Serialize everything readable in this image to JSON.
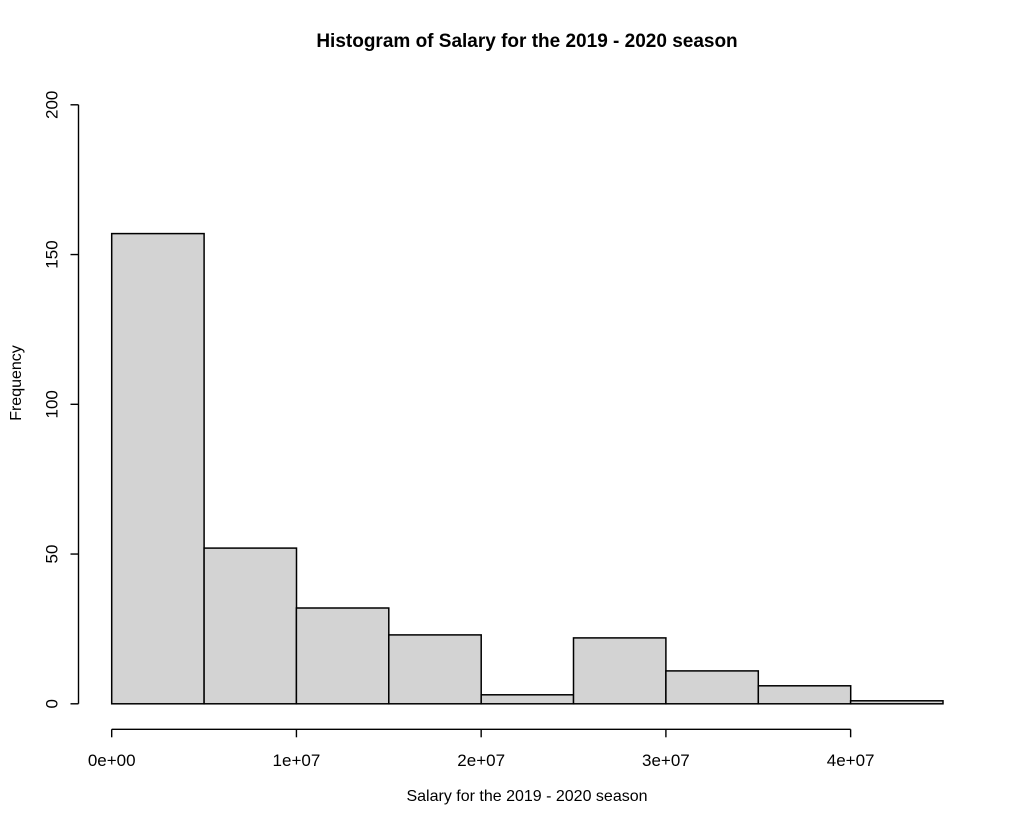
{
  "chart_data": {
    "type": "bar",
    "subtype": "histogram",
    "title": "Histogram of Salary for the 2019 - 2020 season",
    "xlabel": "Salary for the 2019 - 2020 season",
    "ylabel": "Frequency",
    "bin_start": 0,
    "bin_width": 5000000,
    "counts": [
      157,
      52,
      32,
      23,
      3,
      22,
      11,
      6,
      1
    ],
    "bin_edges": [
      0,
      5000000,
      10000000,
      15000000,
      20000000,
      25000000,
      30000000,
      35000000,
      40000000,
      45000000
    ],
    "x_ticks": [
      {
        "value": 0,
        "label": "0e+00"
      },
      {
        "value": 10000000,
        "label": "1e+07"
      },
      {
        "value": 20000000,
        "label": "2e+07"
      },
      {
        "value": 30000000,
        "label": "3e+07"
      },
      {
        "value": 40000000,
        "label": "4e+07"
      }
    ],
    "y_ticks": [
      {
        "value": 0,
        "label": "0"
      },
      {
        "value": 50,
        "label": "50"
      },
      {
        "value": 100,
        "label": "100"
      },
      {
        "value": 150,
        "label": "150"
      },
      {
        "value": 200,
        "label": "200"
      }
    ],
    "xlim": [
      0,
      45000000
    ],
    "ylim": [
      0,
      200
    ],
    "grid": false,
    "legend": null,
    "colors": {
      "bar_fill": "#d3d3d3",
      "bar_stroke": "#000000",
      "axis_color": "#000000",
      "background": "#ffffff"
    }
  }
}
